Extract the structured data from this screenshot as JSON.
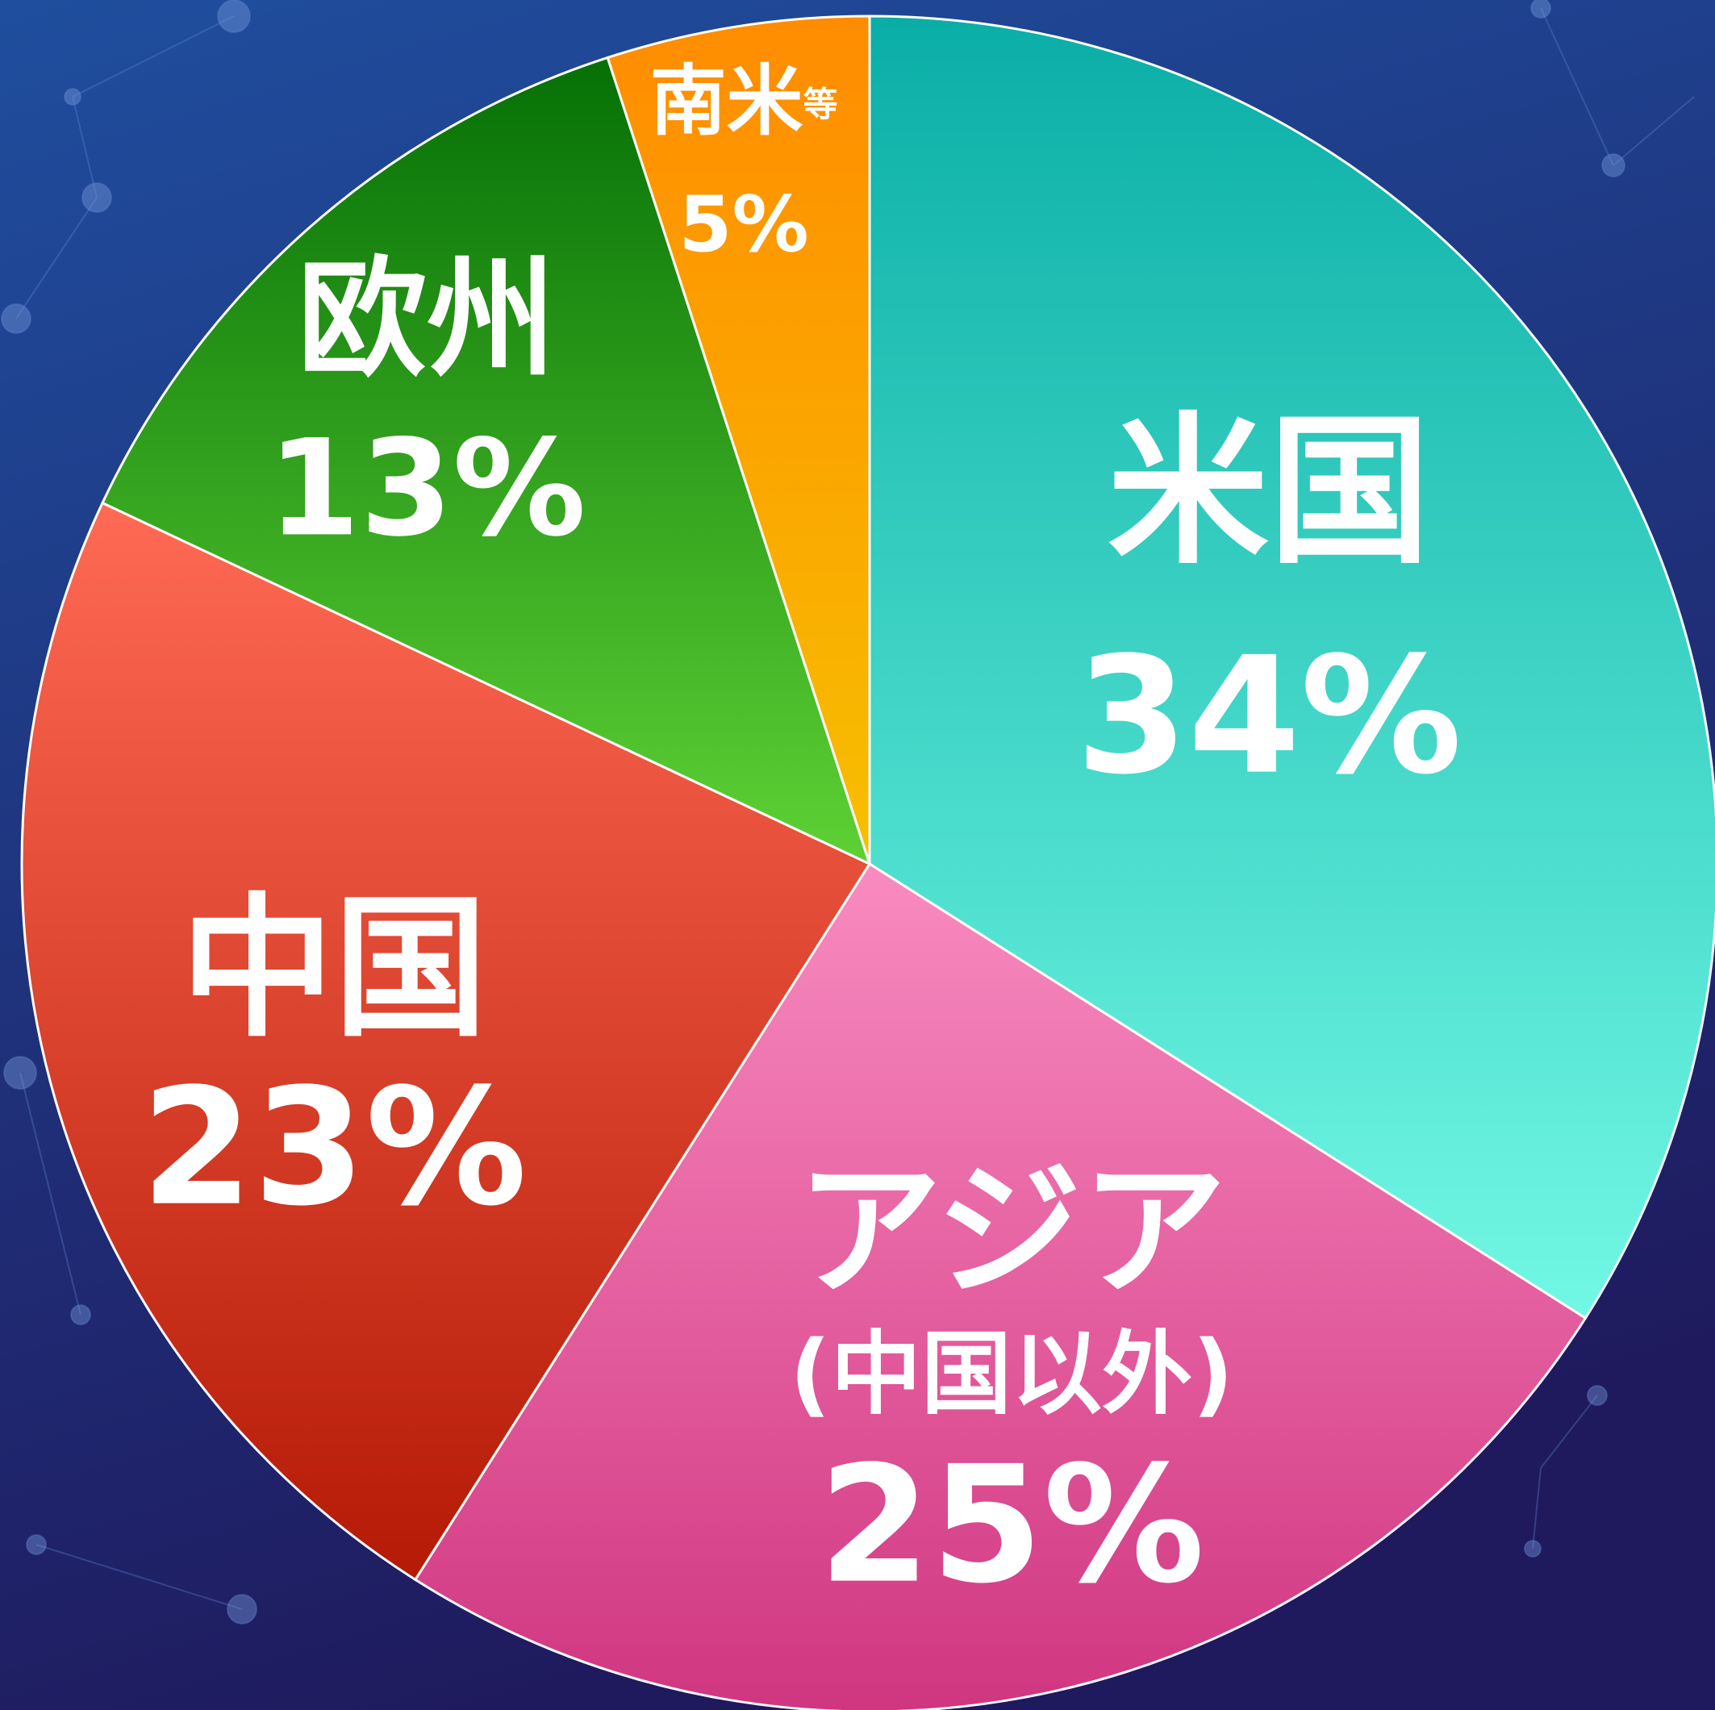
{
  "chart_data": {
    "type": "pie",
    "categories": [
      "米国",
      "アジア",
      "中国",
      "欧州",
      "南米"
    ],
    "category_notes": [
      null,
      "(中国以外)",
      null,
      null,
      "等"
    ],
    "values": [
      34,
      25,
      23,
      13,
      5
    ],
    "value_labels": [
      "34%",
      "25%",
      "23%",
      "13%",
      "5%"
    ],
    "colors": [
      [
        "#0aaea6",
        "#72f8e4"
      ],
      [
        "#f98bc0",
        "#d03680"
      ],
      [
        "#ff6a55",
        "#b41a05"
      ],
      [
        "#067006",
        "#5ed135"
      ],
      [
        "#ff8c00",
        "#f7bf00"
      ]
    ]
  }
}
